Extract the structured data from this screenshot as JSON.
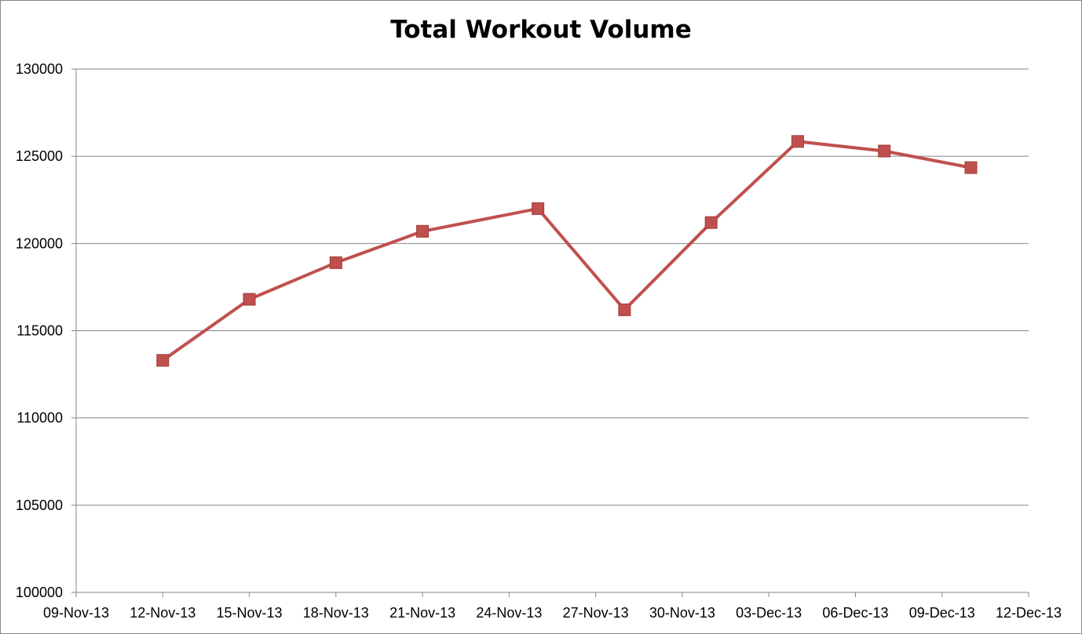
{
  "chart_data": {
    "type": "line",
    "title": "Total Workout Volume",
    "xlabel": "",
    "ylabel": "",
    "x_tick_labels": [
      "09-Nov-13",
      "12-Nov-13",
      "15-Nov-13",
      "18-Nov-13",
      "21-Nov-13",
      "24-Nov-13",
      "27-Nov-13",
      "30-Nov-13",
      "03-Dec-13",
      "06-Dec-13",
      "09-Dec-13",
      "12-Dec-13"
    ],
    "y_tick_labels": [
      "100000",
      "105000",
      "110000",
      "115000",
      "120000",
      "125000",
      "130000"
    ],
    "xlim": [
      "09-Nov-13",
      "12-Dec-13"
    ],
    "ylim": [
      100000,
      130000
    ],
    "grid": "horizontal",
    "legend": "none",
    "series": [
      {
        "color": "#C0504D",
        "marker": "square",
        "points": [
          {
            "x": "12-Nov-13",
            "y": 113300
          },
          {
            "x": "15-Nov-13",
            "y": 116800
          },
          {
            "x": "18-Nov-13",
            "y": 118900
          },
          {
            "x": "21-Nov-13",
            "y": 120700
          },
          {
            "x": "25-Nov-13",
            "y": 122000
          },
          {
            "x": "28-Nov-13",
            "y": 116200
          },
          {
            "x": "01-Dec-13",
            "y": 121200
          },
          {
            "x": "04-Dec-13",
            "y": 125850
          },
          {
            "x": "07-Dec-13",
            "y": 125300
          },
          {
            "x": "10-Dec-13",
            "y": 124350
          }
        ]
      }
    ]
  }
}
